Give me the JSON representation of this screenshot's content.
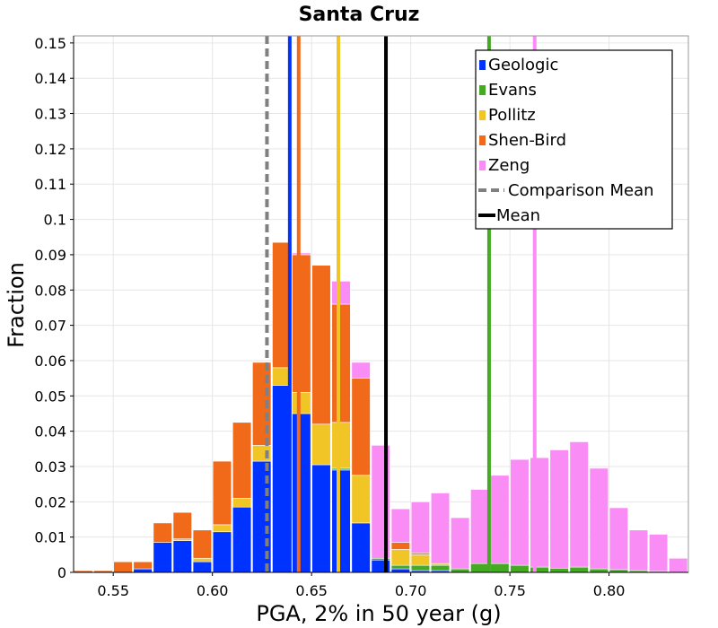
{
  "chart_data": {
    "type": "bar",
    "stacked": true,
    "title": "Santa Cruz",
    "xlabel": "PGA, 2% in 50 year (g)",
    "ylabel": "Fraction",
    "xlim": [
      0.53,
      0.84
    ],
    "ylim": [
      0,
      0.152
    ],
    "bin_width": 0.01,
    "x_ticks": [
      "0.55",
      "0.60",
      "0.65",
      "0.70",
      "0.75",
      "0.80"
    ],
    "y_ticks": [
      "0",
      "0.01",
      "0.02",
      "0.03",
      "0.04",
      "0.05",
      "0.06",
      "0.07",
      "0.08",
      "0.09",
      "0.1",
      "0.11",
      "0.12",
      "0.13",
      "0.14",
      "0.15"
    ],
    "grid": true,
    "legend_position": "top-right",
    "bin_centers": [
      0.535,
      0.545,
      0.555,
      0.565,
      0.575,
      0.585,
      0.595,
      0.605,
      0.615,
      0.625,
      0.635,
      0.645,
      0.655,
      0.665,
      0.675,
      0.685,
      0.695,
      0.705,
      0.715,
      0.725,
      0.735,
      0.745,
      0.755,
      0.765,
      0.775,
      0.785,
      0.795,
      0.805,
      0.815,
      0.825,
      0.835
    ],
    "series": [
      {
        "name": "Geologic",
        "color": "#0033ff",
        "values": [
          0,
          0,
          0,
          0.001,
          0.0085,
          0.009,
          0.003,
          0.0115,
          0.0185,
          0.0315,
          0.053,
          0.045,
          0.0305,
          0.029,
          0.014,
          0.0035,
          0.001,
          0.0005,
          0.0005,
          0,
          0,
          0,
          0,
          0,
          0,
          0,
          0,
          0,
          0,
          0,
          0
        ]
      },
      {
        "name": "Evans",
        "color": "#44aa22",
        "values": [
          0,
          0,
          0,
          0,
          0,
          0,
          0,
          0,
          0,
          0,
          0,
          0,
          0,
          0.0005,
          0,
          0.0005,
          0.001,
          0.0015,
          0.0015,
          0.001,
          0.0025,
          0.0025,
          0.002,
          0.0015,
          0.0012,
          0.0015,
          0.001,
          0.0008,
          0.0005,
          0.0003,
          0
        ]
      },
      {
        "name": "Pollitz",
        "color": "#f2c526",
        "values": [
          0,
          0,
          0,
          0,
          0,
          0.0005,
          0.001,
          0.002,
          0.0025,
          0.0045,
          0.005,
          0.006,
          0.0115,
          0.013,
          0.0135,
          0.0,
          0.0045,
          0.003,
          0.0005,
          0,
          0,
          0,
          0,
          0,
          0,
          0,
          0,
          0,
          0,
          0,
          0
        ]
      },
      {
        "name": "Shen-Bird",
        "color": "#f06a1a",
        "values": [
          0.0005,
          0.0005,
          0.003,
          0.002,
          0.0055,
          0.0075,
          0.008,
          0.018,
          0.0215,
          0.0235,
          0.0355,
          0.039,
          0.045,
          0.0335,
          0.0275,
          0.0,
          0.002,
          0.0005,
          0,
          0,
          0,
          0,
          0,
          0,
          0,
          0,
          0,
          0,
          0,
          0,
          0
        ]
      },
      {
        "name": "Zeng",
        "color": "#fa8cf5",
        "values": [
          0,
          0,
          0,
          0,
          0,
          0,
          0,
          0,
          0,
          0,
          0,
          0.0005,
          0,
          0.0065,
          0.0045,
          0.032,
          0.0095,
          0.0145,
          0.02,
          0.0145,
          0.021,
          0.025,
          0.03,
          0.031,
          0.0335,
          0.0355,
          0.0285,
          0.0175,
          0.0115,
          0.0105,
          0.004
        ]
      }
    ],
    "vertical_lines": [
      {
        "name": "Geologic mean",
        "x": 0.639,
        "color": "#0033ff",
        "style": "solid"
      },
      {
        "name": "Shen-Bird mean",
        "x": 0.6435,
        "color": "#f06a1a",
        "style": "solid"
      },
      {
        "name": "Pollitz mean",
        "x": 0.6635,
        "color": "#f2c526",
        "style": "solid"
      },
      {
        "name": "Evans mean",
        "x": 0.7395,
        "color": "#44aa22",
        "style": "solid"
      },
      {
        "name": "Zeng mean",
        "x": 0.7625,
        "color": "#fa8cf5",
        "style": "solid"
      },
      {
        "name": "Comparison Mean",
        "x": 0.6275,
        "color": "#808080",
        "style": "dashed"
      },
      {
        "name": "Mean",
        "x": 0.6875,
        "color": "#000000",
        "style": "solid-thick"
      }
    ],
    "legend": [
      {
        "label": "Geologic",
        "color": "#0033ff",
        "kind": "box"
      },
      {
        "label": "Evans",
        "color": "#44aa22",
        "kind": "box"
      },
      {
        "label": "Pollitz",
        "color": "#f2c526",
        "kind": "box"
      },
      {
        "label": "Shen-Bird",
        "color": "#f06a1a",
        "kind": "box"
      },
      {
        "label": "Zeng",
        "color": "#fa8cf5",
        "kind": "box"
      },
      {
        "label": "Comparison Mean",
        "color": "#808080",
        "kind": "dashed"
      },
      {
        "label": "Mean",
        "color": "#000000",
        "kind": "line"
      }
    ]
  }
}
